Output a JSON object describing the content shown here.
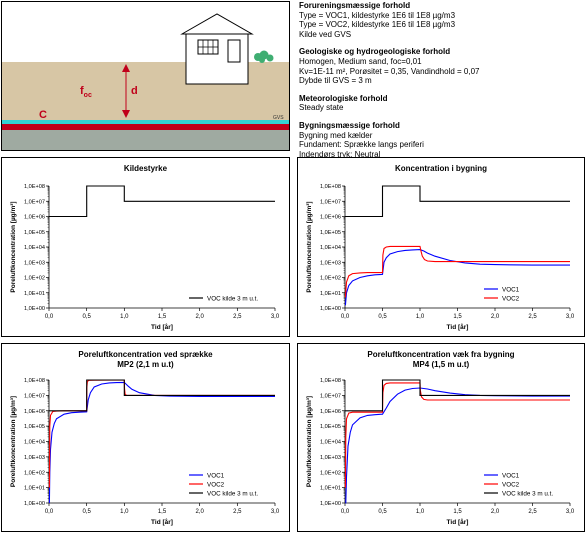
{
  "scene": {
    "label_foc": "f",
    "label_foc_sub": "oc",
    "label_d": "d",
    "label_c": "C",
    "label_gvs": "GVS",
    "tree_icon": "tree-icon",
    "house_icon": "house-icon",
    "colors": {
      "sky": "#ffffff",
      "soil": "#d7c6a5",
      "source": "#c0001a",
      "water": "#33d3d3",
      "saturated": "#9faaa1",
      "arrow": "#c0001a",
      "tree": "#3fae72"
    }
  },
  "info": {
    "sections": [
      {
        "heading": "Forureningsmæssige forhold",
        "lines": [
          "Type = VOC1, kildestyrke 1E6 til 1E8 µg/m3",
          "Type = VOC2, kildestyrke 1E6 til 1E8 µg/m3",
          "Kilde ved GVS"
        ]
      },
      {
        "heading": "Geologiske og hydrogeologiske forhold",
        "lines": [
          "Homogen, Medium sand, foc=0,01",
          "Kv=1E-11 m², Porøsitet = 0,35, Vandindhold = 0,07",
          "Dybde til GVS = 3 m"
        ]
      },
      {
        "heading": "Meteorologiske forhold",
        "lines": [
          "Steady state"
        ]
      },
      {
        "heading": "Bygningsmæssige forhold",
        "lines": [
          "Bygning med kælder",
          "Fundament: Sprække langs periferi",
          "Indendørs tryk: Neutral"
        ]
      }
    ]
  },
  "chart_data": [
    {
      "type": "line",
      "title": "Kildestyrke",
      "subtitle": "",
      "xlabel": "Tid [år]",
      "ylabel": "Poreluftkoncentration [µg/m³]",
      "xlim": [
        0,
        3
      ],
      "ylim_log10": [
        0,
        8
      ],
      "log_y": true,
      "xticks": [
        "0,0",
        "0,5",
        "1,0",
        "1,5",
        "2,0",
        "2,5",
        "3,0"
      ],
      "yticks": [
        "1,0E+00",
        "1,0E+01",
        "1,0E+02",
        "1,0E+03",
        "1,0E+04",
        "1,0E+05",
        "1,0E+06",
        "1,0E+07",
        "1,0E+08"
      ],
      "legend_position": "bottom-right",
      "grid": false,
      "series": [
        {
          "name": "VOC kilde 3 m u.t.",
          "color": "#000000",
          "x": [
            0,
            0.5,
            0.5,
            1.0,
            1.0,
            3.0
          ],
          "y": [
            1000000.0,
            1000000.0,
            100000000.0,
            100000000.0,
            10000000.0,
            10000000.0
          ]
        }
      ]
    },
    {
      "type": "line",
      "title": "Koncentration i bygning",
      "subtitle": "",
      "xlabel": "Tid [år]",
      "ylabel": "Poreluftkoncentration [µg/m³]",
      "xlim": [
        0,
        3
      ],
      "ylim_log10": [
        0,
        8
      ],
      "log_y": true,
      "xticks": [
        "0,0",
        "0,5",
        "1,0",
        "1,5",
        "2,0",
        "2,5",
        "3,0"
      ],
      "yticks": [
        "1,0E+00",
        "1,0E+01",
        "1,0E+02",
        "1,0E+03",
        "1,0E+04",
        "1,0E+05",
        "1,0E+06",
        "1,0E+07",
        "1,0E+08"
      ],
      "legend_position": "bottom-right",
      "grid": false,
      "series": [
        {
          "name": "",
          "color": "#000000",
          "x": [
            0,
            0.5,
            0.5,
            1.0,
            1.0,
            3.0
          ],
          "y": [
            1000000.0,
            1000000.0,
            100000000.0,
            100000000.0,
            10000000.0,
            10000000.0
          ]
        },
        {
          "name": "VOC1",
          "color": "#0000ff",
          "x": [
            0.005,
            0.02,
            0.05,
            0.1,
            0.2,
            0.3,
            0.4,
            0.5,
            0.52,
            0.55,
            0.6,
            0.7,
            0.8,
            0.9,
            1.0,
            1.05,
            1.1,
            1.2,
            1.4,
            1.6,
            1.8,
            2.0,
            2.5,
            3.0
          ],
          "y": [
            1.5,
            10,
            30,
            60,
            100,
            130,
            150,
            160,
            1000,
            2000,
            3500,
            5000,
            6000,
            6500,
            6800,
            5500,
            4000,
            2500,
            1300,
            900,
            750,
            700,
            650,
            650
          ]
        },
        {
          "name": "VOC2",
          "color": "#ff0000",
          "x": [
            0.005,
            0.02,
            0.05,
            0.1,
            0.2,
            0.3,
            0.4,
            0.5,
            0.505,
            0.52,
            0.55,
            0.6,
            0.8,
            1.0,
            1.01,
            1.03,
            1.06,
            1.1,
            1.2,
            1.5,
            2.0,
            3.0
          ],
          "y": [
            5,
            50,
            130,
            180,
            200,
            210,
            210,
            210,
            3000,
            8000,
            10000,
            11000,
            11000,
            11000,
            6000,
            2500,
            1500,
            1200,
            1100,
            1100,
            1100,
            1100
          ]
        }
      ]
    },
    {
      "type": "line",
      "title": "Poreluftkoncentration ved sprække",
      "subtitle": "MP2 (2,1 m u.t)",
      "xlabel": "Tid [år]",
      "ylabel": "Poreluftkoncentration [µg/m³]",
      "xlim": [
        0,
        3
      ],
      "ylim_log10": [
        0,
        8
      ],
      "log_y": true,
      "xticks": [
        "0,0",
        "0,5",
        "1,0",
        "1,5",
        "2,0",
        "2,5",
        "3,0"
      ],
      "yticks": [
        "1,0E+00",
        "1,0E+01",
        "1,0E+02",
        "1,0E+03",
        "1,0E+04",
        "1,0E+05",
        "1,0E+06",
        "1,0E+07",
        "1,0E+08"
      ],
      "legend_position": "bottom-right",
      "grid": false,
      "series": [
        {
          "name": "VOC1",
          "color": "#0000ff",
          "x": [
            0.005,
            0.01,
            0.02,
            0.04,
            0.07,
            0.1,
            0.2,
            0.3,
            0.4,
            0.5,
            0.52,
            0.55,
            0.6,
            0.7,
            0.8,
            0.9,
            1.0,
            1.05,
            1.1,
            1.2,
            1.4,
            1.6,
            2.0,
            2.5,
            3.0
          ],
          "y": [
            1,
            100,
            3000,
            40000,
            150000,
            300000,
            600000,
            750000,
            800000,
            850000,
            5000000,
            15000000,
            35000000,
            55000000,
            65000000,
            68000000,
            70000000,
            40000000,
            25000000,
            15000000,
            10000000,
            9000000,
            8500000,
            8500000,
            8500000
          ]
        },
        {
          "name": "VOC2",
          "color": "#ff0000",
          "x": [
            0.005,
            0.01,
            0.02,
            0.05,
            0.1,
            0.2,
            0.3,
            0.5,
            0.502,
            0.51,
            0.53,
            0.6,
            0.8,
            1.0,
            1.002,
            1.01,
            1.03,
            1.1,
            1.5,
            2.0,
            3.0
          ],
          "y": [
            10,
            100000,
            500000,
            900000,
            950000,
            1000000,
            1000000,
            1000000,
            30000000,
            80000000,
            95000000,
            97000000,
            98000000,
            98000000,
            30000000,
            12000000,
            10000000,
            10000000,
            10000000,
            10000000,
            10000000
          ]
        },
        {
          "name": "VOC kilde 3 m u.t.",
          "color": "#000000",
          "x": [
            0,
            0.5,
            0.5,
            1.0,
            1.0,
            3.0
          ],
          "y": [
            1000000.0,
            1000000.0,
            100000000.0,
            100000000.0,
            10000000.0,
            10000000.0
          ]
        }
      ]
    },
    {
      "type": "line",
      "title": "Poreluftkoncentration væk fra bygning",
      "subtitle": "MP4 (1,5 m u.t)",
      "xlabel": "Tid [år]",
      "ylabel": "Poreluftkoncentration [µg/m³]",
      "xlim": [
        0,
        3
      ],
      "ylim_log10": [
        0,
        8
      ],
      "log_y": true,
      "xticks": [
        "0,0",
        "0,5",
        "1,0",
        "1,5",
        "2,0",
        "2,5",
        "3,0"
      ],
      "yticks": [
        "1,0E+00",
        "1,0E+01",
        "1,0E+02",
        "1,0E+03",
        "1,0E+04",
        "1,0E+05",
        "1,0E+06",
        "1,0E+07",
        "1,0E+08"
      ],
      "legend_position": "bottom-right",
      "grid": false,
      "series": [
        {
          "name": "VOC1",
          "color": "#0000ff",
          "x": [
            0.005,
            0.01,
            0.02,
            0.04,
            0.07,
            0.1,
            0.2,
            0.3,
            0.4,
            0.5,
            0.55,
            0.6,
            0.7,
            0.8,
            0.9,
            1.0,
            1.1,
            1.2,
            1.4,
            1.6,
            1.8,
            2.0,
            2.5,
            3.0
          ],
          "y": [
            1,
            1,
            50,
            5000,
            40000,
            120000,
            350000,
            500000,
            550000,
            600000,
            1500000,
            4000000,
            12000000,
            22000000,
            28000000,
            30000000,
            26000000,
            20000000,
            14000000,
            11000000,
            10000000,
            9500000,
            9000000,
            9000000
          ]
        },
        {
          "name": "VOC2",
          "color": "#ff0000",
          "x": [
            0.005,
            0.01,
            0.02,
            0.05,
            0.1,
            0.2,
            0.3,
            0.5,
            0.505,
            0.52,
            0.55,
            0.6,
            0.8,
            1.0,
            1.005,
            1.02,
            1.05,
            1.1,
            1.5,
            2.0,
            3.0
          ],
          "y": [
            10,
            20000,
            300000,
            700000,
            800000,
            800000,
            800000,
            800000,
            15000000,
            45000000,
            60000000,
            65000000,
            65000000,
            65000000,
            20000000,
            8000000,
            5500000,
            5000000,
            5000000,
            5000000,
            5000000
          ]
        },
        {
          "name": "VOC kilde 3 m u.t.",
          "color": "#000000",
          "x": [
            0,
            0.5,
            0.5,
            1.0,
            1.0,
            3.0
          ],
          "y": [
            1000000.0,
            1000000.0,
            100000000.0,
            100000000.0,
            10000000.0,
            10000000.0
          ]
        }
      ]
    }
  ]
}
